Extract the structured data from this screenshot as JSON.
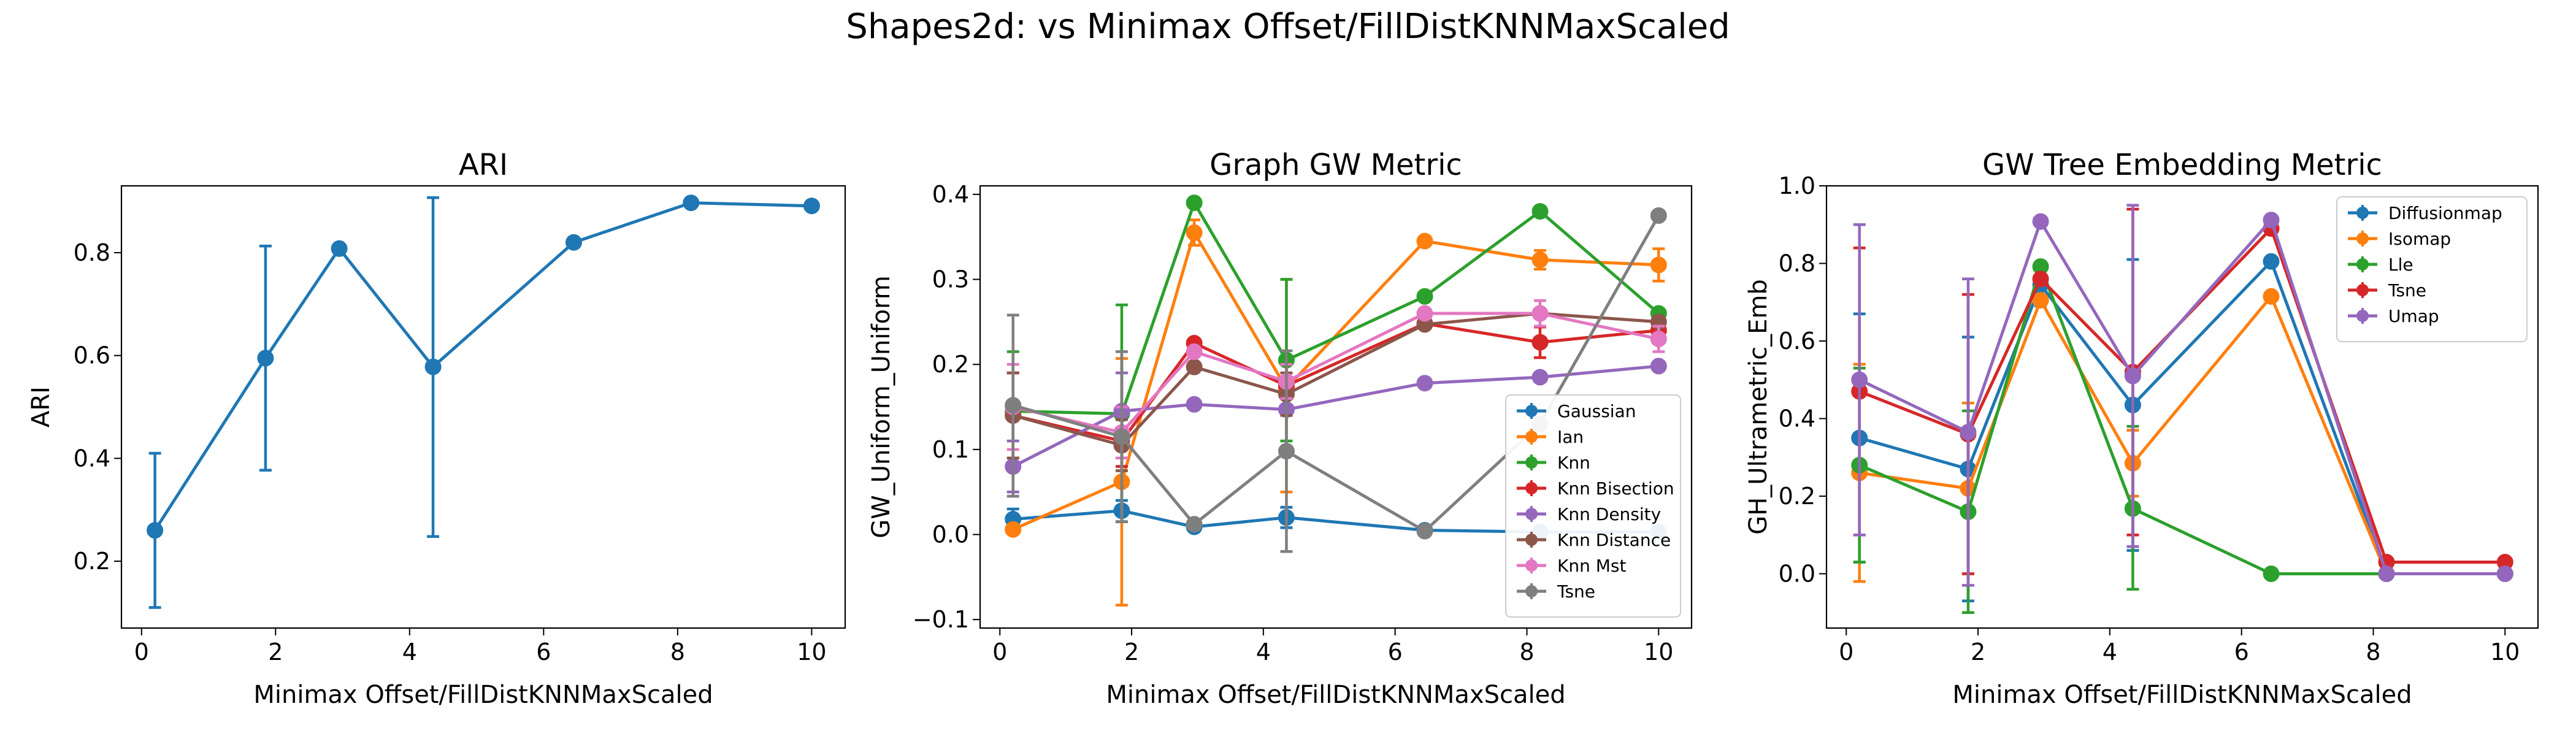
{
  "figure": {
    "suptitle": "Shapes2d: vs Minimax Offset/FillDistKNNMaxScaled"
  },
  "chart_data": [
    {
      "type": "line",
      "title": "ARI",
      "xlabel": "Minimax Offset/FillDistKNNMaxScaled",
      "ylabel": "ARI",
      "xlim": [
        -0.3,
        10.5
      ],
      "ylim": [
        0.07,
        0.93
      ],
      "xticks": [
        0,
        2,
        4,
        6,
        8,
        10
      ],
      "yticks": [
        0.2,
        0.4,
        0.6,
        0.8
      ],
      "yticklabels": [
        "0.2",
        "0.4",
        "0.6",
        "0.8"
      ],
      "grid": false,
      "series": [
        {
          "color": "#1f77b4",
          "marker": "circle",
          "x": [
            0.2,
            1.85,
            2.95,
            4.35,
            6.45,
            8.2,
            10.0
          ],
          "y": [
            0.26,
            0.595,
            0.808,
            0.578,
            0.82,
            0.897,
            0.891
          ],
          "yerr_low": [
            0.11,
            0.377,
            0.808,
            0.248,
            0.82,
            0.897,
            0.891
          ],
          "yerr_high": [
            0.41,
            0.813,
            0.808,
            0.907,
            0.82,
            0.897,
            0.891
          ]
        }
      ]
    },
    {
      "type": "line",
      "title": "Graph GW Metric",
      "xlabel": "Minimax Offset/FillDistKNNMaxScaled",
      "ylabel": "GW_Uniform_Uniform",
      "xlim": [
        -0.3,
        10.5
      ],
      "ylim": [
        -0.11,
        0.41
      ],
      "xticks": [
        0,
        2,
        4,
        6,
        8,
        10
      ],
      "yticks": [
        -0.1,
        0.0,
        0.1,
        0.2,
        0.3,
        0.4
      ],
      "yticklabels": [
        "−0.1",
        "0.0",
        "0.1",
        "0.2",
        "0.3",
        "0.4"
      ],
      "grid": false,
      "legend": "lower right",
      "series": [
        {
          "name": "Gaussian",
          "color": "#1f77b4",
          "x": [
            0.2,
            1.85,
            2.95,
            4.35,
            6.45,
            8.2,
            10.0
          ],
          "y": [
            0.018,
            0.028,
            0.009,
            0.02,
            0.005,
            0.003,
            0.003
          ],
          "yerr_low": [
            0.005,
            0.015,
            0.009,
            0.008,
            0.005,
            0.003,
            0.003
          ],
          "yerr_high": [
            0.03,
            0.04,
            0.009,
            0.032,
            0.005,
            0.003,
            0.003
          ]
        },
        {
          "name": "Ian",
          "color": "#ff7f0e",
          "x": [
            0.2,
            1.85,
            2.95,
            4.35,
            6.45,
            8.2,
            10.0
          ],
          "y": [
            0.006,
            0.062,
            0.355,
            0.172,
            0.345,
            0.323,
            0.317
          ],
          "yerr_low": [
            0.006,
            -0.083,
            0.34,
            0.05,
            0.345,
            0.312,
            0.298
          ],
          "yerr_high": [
            0.006,
            0.207,
            0.37,
            0.3,
            0.345,
            0.334,
            0.336
          ]
        },
        {
          "name": "Knn",
          "color": "#2ca02c",
          "x": [
            0.2,
            1.85,
            2.95,
            4.35,
            6.45,
            8.2,
            10.0
          ],
          "y": [
            0.145,
            0.142,
            0.39,
            0.205,
            0.28,
            0.38,
            0.26
          ],
          "yerr_low": [
            0.075,
            0.015,
            0.39,
            0.11,
            0.28,
            0.38,
            0.26
          ],
          "yerr_high": [
            0.215,
            0.27,
            0.39,
            0.3,
            0.28,
            0.38,
            0.26
          ]
        },
        {
          "name": "Knn Bisection",
          "color": "#d62728",
          "x": [
            0.2,
            1.85,
            2.95,
            4.35,
            6.45,
            8.2,
            10.0
          ],
          "y": [
            0.14,
            0.11,
            0.225,
            0.175,
            0.248,
            0.226,
            0.24
          ],
          "yerr_low": [
            0.09,
            0.08,
            0.225,
            0.15,
            0.248,
            0.208,
            0.225
          ],
          "yerr_high": [
            0.19,
            0.14,
            0.225,
            0.2,
            0.248,
            0.244,
            0.255
          ]
        },
        {
          "name": "Knn Density",
          "color": "#9467bd",
          "x": [
            0.2,
            1.85,
            2.95,
            4.35,
            6.45,
            8.2,
            10.0
          ],
          "y": [
            0.08,
            0.145,
            0.153,
            0.147,
            0.178,
            0.185,
            0.198
          ],
          "yerr_low": [
            0.05,
            0.1,
            0.153,
            0.147,
            0.178,
            0.185,
            0.198
          ],
          "yerr_high": [
            0.11,
            0.19,
            0.153,
            0.147,
            0.178,
            0.185,
            0.198
          ]
        },
        {
          "name": "Knn Distance",
          "color": "#8c564b",
          "x": [
            0.2,
            1.85,
            2.95,
            4.35,
            6.45,
            8.2,
            10.0
          ],
          "y": [
            0.14,
            0.105,
            0.197,
            0.165,
            0.247,
            0.26,
            0.25
          ],
          "yerr_low": [
            0.09,
            0.075,
            0.197,
            0.14,
            0.247,
            0.26,
            0.25
          ],
          "yerr_high": [
            0.19,
            0.135,
            0.197,
            0.19,
            0.247,
            0.26,
            0.25
          ]
        },
        {
          "name": "Knn Mst",
          "color": "#e377c2",
          "x": [
            0.2,
            1.85,
            2.95,
            4.35,
            6.45,
            8.2,
            10.0
          ],
          "y": [
            0.15,
            0.12,
            0.215,
            0.18,
            0.26,
            0.26,
            0.23
          ],
          "yerr_low": [
            0.1,
            0.09,
            0.215,
            0.16,
            0.26,
            0.245,
            0.215
          ],
          "yerr_high": [
            0.2,
            0.15,
            0.215,
            0.2,
            0.26,
            0.275,
            0.245
          ]
        },
        {
          "name": "Tsne",
          "color": "#7f7f7f",
          "x": [
            0.2,
            1.85,
            2.95,
            4.35,
            6.45,
            8.2,
            10.0
          ],
          "y": [
            0.152,
            0.115,
            0.012,
            0.098,
            0.004,
            0.13,
            0.375
          ],
          "yerr_low": [
            0.045,
            0.015,
            0.012,
            -0.02,
            0.004,
            0.13,
            0.375
          ],
          "yerr_high": [
            0.258,
            0.215,
            0.012,
            0.216,
            0.004,
            0.13,
            0.375
          ]
        }
      ]
    },
    {
      "type": "line",
      "title": "GW Tree Embedding Metric",
      "xlabel": "Minimax Offset/FillDistKNNMaxScaled",
      "ylabel": "GH_Ultrametric_Emb",
      "xlim": [
        -0.3,
        10.5
      ],
      "ylim": [
        -0.14,
        1.0
      ],
      "xticks": [
        0,
        2,
        4,
        6,
        8,
        10
      ],
      "yticks": [
        0.0,
        0.2,
        0.4,
        0.6,
        0.8,
        1.0
      ],
      "yticklabels": [
        "0.0",
        "0.2",
        "0.4",
        "0.6",
        "0.8",
        "1.0"
      ],
      "grid": false,
      "legend": "upper right",
      "series": [
        {
          "name": "Diffusionmap",
          "color": "#1f77b4",
          "x": [
            0.2,
            1.85,
            2.95,
            4.35,
            6.45,
            8.2,
            10.0
          ],
          "y": [
            0.35,
            0.27,
            0.745,
            0.435,
            0.805,
            0.0,
            0.0
          ],
          "yerr_low": [
            0.03,
            -0.07,
            0.69,
            0.06,
            0.805,
            0.0,
            0.0
          ],
          "yerr_high": [
            0.67,
            0.61,
            0.8,
            0.81,
            0.805,
            0.0,
            0.0
          ]
        },
        {
          "name": "Isomap",
          "color": "#ff7f0e",
          "x": [
            0.2,
            1.85,
            2.95,
            4.35,
            6.45,
            8.2,
            10.0
          ],
          "y": [
            0.26,
            0.22,
            0.705,
            0.285,
            0.715,
            0.0,
            0.0
          ],
          "yerr_low": [
            -0.02,
            0.0,
            0.705,
            0.2,
            0.715,
            0.0,
            0.0
          ],
          "yerr_high": [
            0.54,
            0.44,
            0.705,
            0.37,
            0.715,
            0.0,
            0.0
          ]
        },
        {
          "name": "Lle",
          "color": "#2ca02c",
          "x": [
            0.2,
            1.85,
            2.95,
            4.35,
            6.45,
            8.2,
            10.0
          ],
          "y": [
            0.28,
            0.16,
            0.792,
            0.168,
            0.0,
            0.0,
            0.0
          ],
          "yerr_low": [
            0.03,
            -0.1,
            0.792,
            -0.04,
            0.0,
            0.0,
            0.0
          ],
          "yerr_high": [
            0.53,
            0.42,
            0.792,
            0.38,
            0.0,
            0.0,
            0.0
          ]
        },
        {
          "name": "Tsne",
          "color": "#d62728",
          "x": [
            0.2,
            1.85,
            2.95,
            4.35,
            6.45,
            8.2,
            10.0
          ],
          "y": [
            0.47,
            0.36,
            0.76,
            0.52,
            0.89,
            0.03,
            0.03
          ],
          "yerr_low": [
            0.1,
            0.0,
            0.76,
            0.1,
            0.89,
            0.03,
            0.03
          ],
          "yerr_high": [
            0.84,
            0.72,
            0.76,
            0.94,
            0.89,
            0.03,
            0.03
          ]
        },
        {
          "name": "Umap",
          "color": "#9467bd",
          "x": [
            0.2,
            1.85,
            2.95,
            4.35,
            6.45,
            8.2,
            10.0
          ],
          "y": [
            0.5,
            0.365,
            0.908,
            0.51,
            0.912,
            0.0,
            0.0
          ],
          "yerr_low": [
            0.1,
            -0.03,
            0.908,
            0.07,
            0.912,
            0.0,
            0.0
          ],
          "yerr_high": [
            0.9,
            0.76,
            0.908,
            0.95,
            0.912,
            0.0,
            0.0
          ]
        }
      ]
    }
  ]
}
